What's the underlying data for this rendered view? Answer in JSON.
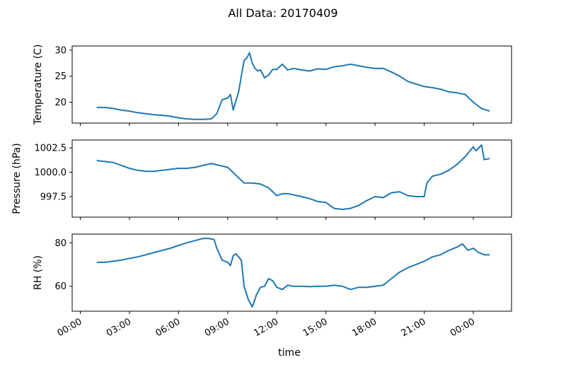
{
  "figure": {
    "title": "All Data: 20170409",
    "xlabel": "time",
    "line_color": "#1f77b4",
    "x_range": [
      "2017-04-08 23:30",
      "2017-04-10 02:20"
    ],
    "x_ticks": [
      "00:00",
      "03:00",
      "06:00",
      "09:00",
      "12:00",
      "15:00",
      "18:00",
      "21:00",
      "00:00"
    ]
  },
  "chart_data": [
    {
      "type": "line",
      "title": "All Data: 20170409",
      "xlabel": "",
      "ylabel": "Temperature (C)",
      "ylim": [
        16.0,
        30.8
      ],
      "y_ticks": [
        "20",
        "25",
        "30"
      ],
      "y_tick_values": [
        20,
        25,
        30
      ],
      "x_tick_labels_shown": false,
      "series": [
        {
          "x": [
            "01:00",
            "01:30",
            "02:00",
            "02:30",
            "03:00",
            "03:30",
            "04:00",
            "04:30",
            "05:00",
            "05:30",
            "06:00",
            "06:30",
            "07:00",
            "07:30",
            "08:00",
            "08:20",
            "08:40",
            "09:00",
            "09:10",
            "09:20",
            "09:40",
            "09:50",
            "10:00",
            "10:10",
            "10:20",
            "10:30",
            "10:40",
            "10:50",
            "11:00",
            "11:15",
            "11:30",
            "11:45",
            "12:00",
            "12:20",
            "12:40",
            "13:00",
            "13:30",
            "14:00",
            "14:30",
            "15:00",
            "15:30",
            "16:00",
            "16:30",
            "17:00",
            "17:30",
            "18:00",
            "18:30",
            "19:00",
            "19:30",
            "20:00",
            "20:30",
            "21:00",
            "21:30",
            "22:00",
            "22:30",
            "23:00",
            "23:30",
            "24:00",
            "24:30",
            "25:00"
          ],
          "y": [
            19.0,
            19.0,
            18.8,
            18.5,
            18.3,
            18.0,
            17.8,
            17.6,
            17.5,
            17.3,
            17.0,
            16.8,
            16.7,
            16.7,
            16.8,
            17.8,
            20.5,
            20.8,
            21.5,
            18.5,
            22.0,
            25.0,
            28.0,
            28.5,
            29.5,
            27.5,
            26.5,
            26.0,
            26.2,
            24.7,
            25.2,
            26.3,
            26.3,
            27.3,
            26.2,
            26.5,
            26.2,
            26.0,
            26.4,
            26.3,
            26.8,
            27.0,
            27.3,
            27.0,
            26.7,
            26.5,
            26.5,
            25.8,
            25.0,
            24.0,
            23.5,
            23.0,
            22.8,
            22.5,
            22.0,
            21.8,
            21.5,
            20.0,
            18.8,
            18.3
          ]
        }
      ]
    },
    {
      "type": "line",
      "xlabel": "",
      "ylabel": "Pressure (hPa)",
      "ylim": [
        995.4,
        1003.3
      ],
      "y_ticks": [
        "997.5",
        "1000.0",
        "1002.5"
      ],
      "y_tick_values": [
        997.5,
        1000.0,
        1002.5
      ],
      "x_tick_labels_shown": false,
      "series": [
        {
          "x": [
            "01:00",
            "01:30",
            "02:00",
            "02:30",
            "03:00",
            "03:30",
            "04:00",
            "04:30",
            "05:00",
            "05:30",
            "06:00",
            "06:30",
            "07:00",
            "07:30",
            "08:00",
            "08:30",
            "09:00",
            "09:30",
            "10:00",
            "10:30",
            "11:00",
            "11:30",
            "12:00",
            "12:20",
            "12:40",
            "13:00",
            "13:30",
            "14:00",
            "14:30",
            "15:00",
            "15:30",
            "16:00",
            "16:30",
            "17:00",
            "17:30",
            "18:00",
            "18:30",
            "19:00",
            "19:30",
            "20:00",
            "20:30",
            "21:00",
            "21:10",
            "21:30",
            "22:00",
            "22:30",
            "23:00",
            "23:30",
            "24:00",
            "24:10",
            "24:30",
            "24:40",
            "25:00"
          ],
          "y": [
            1001.2,
            1001.1,
            1001.0,
            1000.7,
            1000.4,
            1000.2,
            1000.1,
            1000.1,
            1000.2,
            1000.3,
            1000.4,
            1000.4,
            1000.5,
            1000.7,
            1000.9,
            1000.7,
            1000.5,
            999.7,
            998.9,
            998.9,
            998.8,
            998.4,
            997.6,
            997.8,
            997.8,
            997.7,
            997.5,
            997.3,
            997.0,
            996.9,
            996.3,
            996.2,
            996.3,
            996.6,
            997.1,
            997.5,
            997.4,
            997.9,
            998.0,
            997.6,
            997.5,
            997.5,
            998.9,
            999.6,
            999.8,
            1000.2,
            1000.8,
            1001.6,
            1002.6,
            1002.2,
            1002.8,
            1001.3,
            1001.4
          ]
        }
      ]
    },
    {
      "type": "line",
      "xlabel": "time",
      "ylabel": "RH (%)",
      "ylim": [
        48.5,
        84.0
      ],
      "y_ticks": [
        "60",
        "80"
      ],
      "y_tick_values": [
        60,
        80
      ],
      "x_tick_labels_shown": true,
      "series": [
        {
          "x": [
            "01:00",
            "01:30",
            "02:00",
            "02:30",
            "03:00",
            "03:30",
            "04:00",
            "04:30",
            "05:00",
            "05:30",
            "06:00",
            "06:30",
            "07:00",
            "07:30",
            "07:50",
            "08:10",
            "08:20",
            "08:40",
            "09:00",
            "09:10",
            "09:20",
            "09:30",
            "09:50",
            "10:00",
            "10:15",
            "10:30",
            "10:45",
            "11:00",
            "11:15",
            "11:30",
            "11:45",
            "12:00",
            "12:20",
            "12:40",
            "13:00",
            "13:30",
            "14:00",
            "14:30",
            "15:00",
            "15:30",
            "16:00",
            "16:30",
            "17:00",
            "17:30",
            "18:00",
            "18:30",
            "19:00",
            "19:30",
            "20:00",
            "20:30",
            "21:00",
            "21:30",
            "22:00",
            "22:30",
            "23:00",
            "23:20",
            "23:40",
            "24:00",
            "24:20",
            "24:40",
            "25:00"
          ],
          "y": [
            71.0,
            71.0,
            71.5,
            72.0,
            72.8,
            73.5,
            74.5,
            75.5,
            76.5,
            77.5,
            78.8,
            80.0,
            81.0,
            82.0,
            82.0,
            81.5,
            77.5,
            72.0,
            71.0,
            69.5,
            74.0,
            75.0,
            72.0,
            60.0,
            54.0,
            50.5,
            56.0,
            59.5,
            60.0,
            63.5,
            62.5,
            59.5,
            58.5,
            60.5,
            60.0,
            60.0,
            59.8,
            60.0,
            60.0,
            60.5,
            60.0,
            58.5,
            59.5,
            59.5,
            60.0,
            60.5,
            63.5,
            66.5,
            68.5,
            70.0,
            71.5,
            73.5,
            74.5,
            76.5,
            78.0,
            79.5,
            76.5,
            77.5,
            75.5,
            74.5,
            74.5
          ]
        }
      ]
    }
  ]
}
